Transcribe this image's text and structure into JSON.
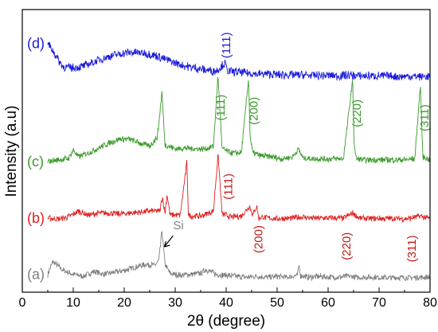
{
  "chart_data": {
    "type": "line",
    "xlabel": "2θ (degree)",
    "ylabel": "Intensity (a.u)",
    "xlim": [
      0,
      80
    ],
    "x_ticks": [
      "0",
      "10",
      "20",
      "30",
      "40",
      "50",
      "60",
      "70",
      "80"
    ],
    "y_ticks_shown": false,
    "grid": false,
    "legend": "none",
    "series": [
      {
        "name": "(a)",
        "color": "#808080",
        "offset": 0,
        "x": [
          5,
          6,
          8,
          10,
          12,
          14,
          16,
          18,
          20,
          22,
          24,
          25,
          26,
          26.8,
          27.4,
          28,
          29,
          31,
          33,
          35,
          36,
          38,
          40,
          42,
          44,
          46,
          48,
          50,
          52,
          54,
          54.3,
          54.6,
          56,
          58,
          60,
          62,
          64,
          66,
          68,
          70,
          72,
          74,
          76,
          78,
          80
        ],
        "y": [
          0.12,
          0.38,
          0.2,
          0.12,
          0.08,
          0.18,
          0.12,
          0.16,
          0.2,
          0.26,
          0.32,
          0.32,
          0.3,
          0.4,
          1.0,
          0.32,
          0.14,
          0.1,
          0.12,
          0.14,
          0.22,
          0.12,
          0.1,
          0.08,
          0.06,
          0.08,
          0.06,
          0.08,
          0.06,
          0.1,
          0.32,
          0.1,
          0.06,
          0.08,
          0.06,
          0.06,
          0.08,
          0.06,
          0.06,
          0.06,
          0.05,
          0.06,
          0.05,
          0.06,
          0.06
        ]
      },
      {
        "name": "(b)",
        "color": "#e02020",
        "offset": 1.2,
        "x": [
          5,
          7,
          9,
          11,
          13,
          15,
          17,
          19,
          21,
          23,
          25,
          27,
          27.5,
          28,
          28.4,
          29,
          31,
          32.3,
          32.6,
          33,
          35,
          36,
          37.5,
          38.4,
          39.2,
          41,
          43,
          44.6,
          45.2,
          46,
          46.4,
          47,
          49,
          51,
          53,
          55,
          57,
          59,
          61,
          63,
          64.9,
          66,
          68,
          70,
          72,
          74,
          76,
          78,
          80
        ],
        "y": [
          0.06,
          0.04,
          0.08,
          0.2,
          0.12,
          0.16,
          0.16,
          0.14,
          0.16,
          0.18,
          0.2,
          0.2,
          0.5,
          0.15,
          0.55,
          0.12,
          0.12,
          1.2,
          0.12,
          0.1,
          0.1,
          0.14,
          0.2,
          1.35,
          0.14,
          0.08,
          0.1,
          0.3,
          0.12,
          0.3,
          0.05,
          0.08,
          0.05,
          0.05,
          0.06,
          0.08,
          0.06,
          0.06,
          0.06,
          0.06,
          0.16,
          0.06,
          0.05,
          0.05,
          0.05,
          0.05,
          0.05,
          0.1,
          0.05
        ]
      },
      {
        "name": "(c)",
        "color": "#3a9a2a",
        "offset": 2.3,
        "x": [
          5,
          7,
          9,
          10,
          11,
          13,
          15,
          17,
          19,
          21,
          23,
          25,
          26.5,
          27.4,
          28,
          30,
          32,
          34,
          36,
          37.5,
          38.4,
          39.2,
          41,
          43,
          44.4,
          44.7,
          45.2,
          47,
          49,
          51,
          53,
          54.2,
          55,
          57,
          59,
          61,
          63,
          64.8,
          65.1,
          65.5,
          67,
          69,
          71,
          73,
          75,
          77,
          78.1,
          78.6,
          80
        ],
        "y": [
          0.1,
          0.14,
          0.16,
          0.34,
          0.2,
          0.28,
          0.38,
          0.48,
          0.56,
          0.56,
          0.48,
          0.42,
          0.6,
          1.5,
          0.45,
          0.36,
          0.38,
          0.36,
          0.36,
          0.42,
          1.85,
          0.36,
          0.28,
          0.28,
          1.8,
          0.6,
          0.28,
          0.22,
          0.2,
          0.16,
          0.2,
          0.36,
          0.18,
          0.16,
          0.16,
          0.16,
          0.16,
          1.75,
          0.5,
          0.16,
          0.14,
          0.14,
          0.14,
          0.14,
          0.14,
          0.16,
          1.65,
          0.2,
          0.14
        ]
      },
      {
        "name": "(d)",
        "color": "#1c1cdc",
        "offset": 4.1,
        "x": [
          5,
          6,
          7,
          8,
          10,
          12,
          14,
          16,
          18,
          20,
          22,
          24,
          26,
          28,
          30,
          32,
          34,
          36,
          38,
          39.8,
          40.2,
          42,
          44,
          46,
          48,
          50,
          52,
          54,
          56,
          58,
          60,
          62,
          64,
          66,
          68,
          70,
          72,
          74,
          76,
          78,
          80
        ],
        "y": [
          0.7,
          0.55,
          0.38,
          0.22,
          0.2,
          0.24,
          0.32,
          0.4,
          0.46,
          0.5,
          0.52,
          0.5,
          0.46,
          0.38,
          0.3,
          0.24,
          0.2,
          0.16,
          0.14,
          0.3,
          0.14,
          0.12,
          0.1,
          0.08,
          0.08,
          0.06,
          0.06,
          0.06,
          0.05,
          0.05,
          0.05,
          0.04,
          0.05,
          0.04,
          0.04,
          0.04,
          0.04,
          0.03,
          0.03,
          0.03,
          0.03
        ]
      }
    ],
    "annotations": [
      {
        "text": "Si",
        "series": "(a)",
        "x": 27.4,
        "color": "#808080",
        "arrow": true
      },
      {
        "text": "(111)",
        "series": "(d)",
        "x": 40.0,
        "color": "#1c1cdc"
      },
      {
        "text": "(111)",
        "series": "(c)",
        "x": 40.3,
        "color": "#3a9a2a"
      },
      {
        "text": "(200)",
        "series": "(c)",
        "x": 46.8,
        "color": "#3a9a2a"
      },
      {
        "text": "(220)",
        "series": "(c)",
        "x": 67.0,
        "color": "#3a9a2a"
      },
      {
        "text": "(311)",
        "series": "(c)",
        "x": 80.3,
        "color": "#3a9a2a"
      },
      {
        "text": "(111)",
        "series": "(b)",
        "x": 41.8,
        "color": "#c01818"
      },
      {
        "text": "(200)",
        "series": "(b)",
        "x": 47.7,
        "color": "#c01818"
      },
      {
        "text": "(220)",
        "series": "(b)",
        "x": 65.0,
        "color": "#c01818"
      },
      {
        "text": "(311)",
        "series": "(b)",
        "x": 77.8,
        "color": "#c01818"
      }
    ]
  }
}
